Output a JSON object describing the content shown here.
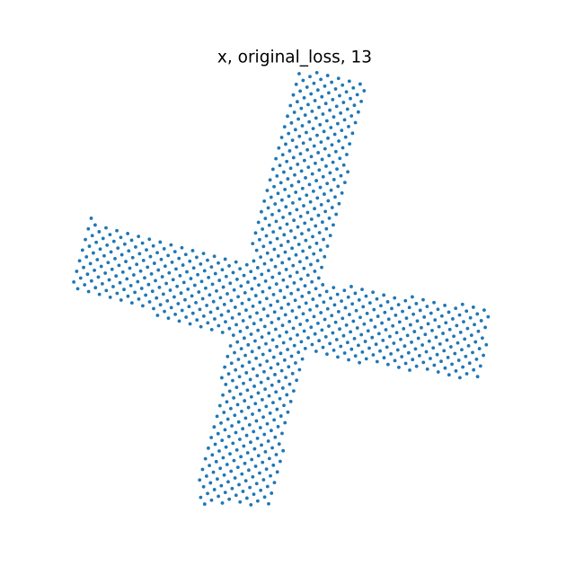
{
  "chart_data": {
    "type": "scatter",
    "title": "x, original_loss, 13",
    "axes_visible": false,
    "grid": false,
    "marker_color": "#1f77b4",
    "xlim": [
      0,
      1
    ],
    "ylim": [
      0,
      1
    ],
    "description": "Point cloud on a lattice forming a rotated four-armed cross (pinwheel).",
    "shape": {
      "center": [
        0.455,
        0.444
      ],
      "lattice_angle_deg": 30,
      "lattice_spacing": 0.0178,
      "arm_half_width": 0.085,
      "arms": [
        {
          "direction_deg": 76.5,
          "length": 0.555
        },
        {
          "direction_deg": 163,
          "length": 0.46
        },
        {
          "direction_deg": 258,
          "length": 0.535
        },
        {
          "direction_deg": 351,
          "length": 0.482
        }
      ]
    }
  }
}
